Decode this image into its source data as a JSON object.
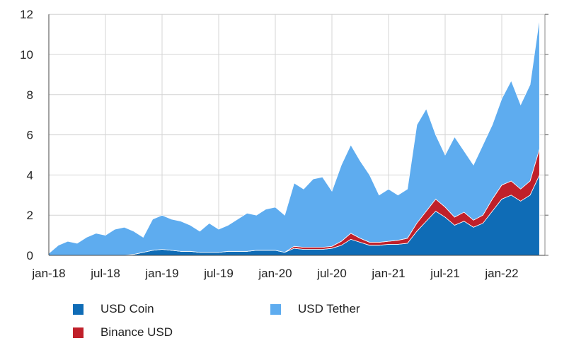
{
  "chart_data": {
    "type": "area",
    "stacked": true,
    "title": "",
    "xlabel": "",
    "ylabel": "",
    "ylim": [
      0,
      12
    ],
    "yticks": [
      "0",
      "2",
      "4",
      "6",
      "8",
      "10",
      "12"
    ],
    "xticks": [
      {
        "label": "jan-18",
        "date": "2018-01"
      },
      {
        "label": "jul-18",
        "date": "2018-07"
      },
      {
        "label": "jan-19",
        "date": "2019-01"
      },
      {
        "label": "jul-19",
        "date": "2019-07"
      },
      {
        "label": "jan-20",
        "date": "2020-01"
      },
      {
        "label": "jul-20",
        "date": "2020-07"
      },
      {
        "label": "jan-21",
        "date": "2021-01"
      },
      {
        "label": "jul-21",
        "date": "2021-07"
      },
      {
        "label": "jan-22",
        "date": "2022-01"
      }
    ],
    "grid": true,
    "legend_position": "bottom",
    "x": [
      "2018-01",
      "2018-02",
      "2018-03",
      "2018-04",
      "2018-05",
      "2018-06",
      "2018-07",
      "2018-08",
      "2018-09",
      "2018-10",
      "2018-11",
      "2018-12",
      "2019-01",
      "2019-02",
      "2019-03",
      "2019-04",
      "2019-05",
      "2019-06",
      "2019-07",
      "2019-08",
      "2019-09",
      "2019-10",
      "2019-11",
      "2019-12",
      "2020-01",
      "2020-02",
      "2020-03",
      "2020-04",
      "2020-05",
      "2020-06",
      "2020-07",
      "2020-08",
      "2020-09",
      "2020-10",
      "2020-11",
      "2020-12",
      "2021-01",
      "2021-02",
      "2021-03",
      "2021-04",
      "2021-05",
      "2021-06",
      "2021-07",
      "2021-08",
      "2021-09",
      "2021-10",
      "2021-11",
      "2021-12",
      "2022-01",
      "2022-02",
      "2022-03",
      "2022-04",
      "2022-05"
    ],
    "series": [
      {
        "name": "USD Coin",
        "color": "#0f6cb6",
        "values": [
          0,
          0,
          0,
          0,
          0,
          0,
          0,
          0,
          0,
          0.05,
          0.15,
          0.25,
          0.3,
          0.25,
          0.2,
          0.2,
          0.15,
          0.15,
          0.15,
          0.2,
          0.2,
          0.2,
          0.25,
          0.25,
          0.25,
          0.15,
          0.35,
          0.3,
          0.3,
          0.3,
          0.35,
          0.5,
          0.8,
          0.65,
          0.5,
          0.5,
          0.55,
          0.55,
          0.6,
          1.2,
          1.7,
          2.2,
          1.9,
          1.5,
          1.7,
          1.4,
          1.6,
          2.2,
          2.8,
          3.0,
          2.7,
          3.0,
          4.0
        ]
      },
      {
        "name": "Binance USD",
        "color": "#c0202a",
        "values": [
          0,
          0,
          0,
          0,
          0,
          0,
          0,
          0,
          0,
          0,
          0,
          0,
          0,
          0,
          0,
          0,
          0,
          0,
          0,
          0,
          0,
          0,
          0,
          0,
          0,
          0,
          0.1,
          0.1,
          0.1,
          0.1,
          0.1,
          0.2,
          0.3,
          0.2,
          0.15,
          0.15,
          0.15,
          0.2,
          0.25,
          0.4,
          0.5,
          0.6,
          0.5,
          0.4,
          0.45,
          0.35,
          0.4,
          0.6,
          0.7,
          0.7,
          0.6,
          0.7,
          1.3
        ]
      },
      {
        "name": "USD Tether",
        "color": "#5eacef",
        "values": [
          0.1,
          0.5,
          0.7,
          0.6,
          0.9,
          1.1,
          1.0,
          1.3,
          1.4,
          1.15,
          0.75,
          1.55,
          1.7,
          1.55,
          1.5,
          1.3,
          1.05,
          1.45,
          1.15,
          1.3,
          1.6,
          1.9,
          1.75,
          2.05,
          2.15,
          1.85,
          3.15,
          2.9,
          3.4,
          3.5,
          2.75,
          3.8,
          4.4,
          3.85,
          3.35,
          2.35,
          2.6,
          2.25,
          2.45,
          4.9,
          5.1,
          3.2,
          2.6,
          4.0,
          3.05,
          2.75,
          3.5,
          3.7,
          4.3,
          5.0,
          4.2,
          4.8,
          6.5
        ]
      }
    ]
  },
  "legend": {
    "usdc": "USD Coin",
    "busd": "Binance USD",
    "usdt": "USD Tether"
  }
}
